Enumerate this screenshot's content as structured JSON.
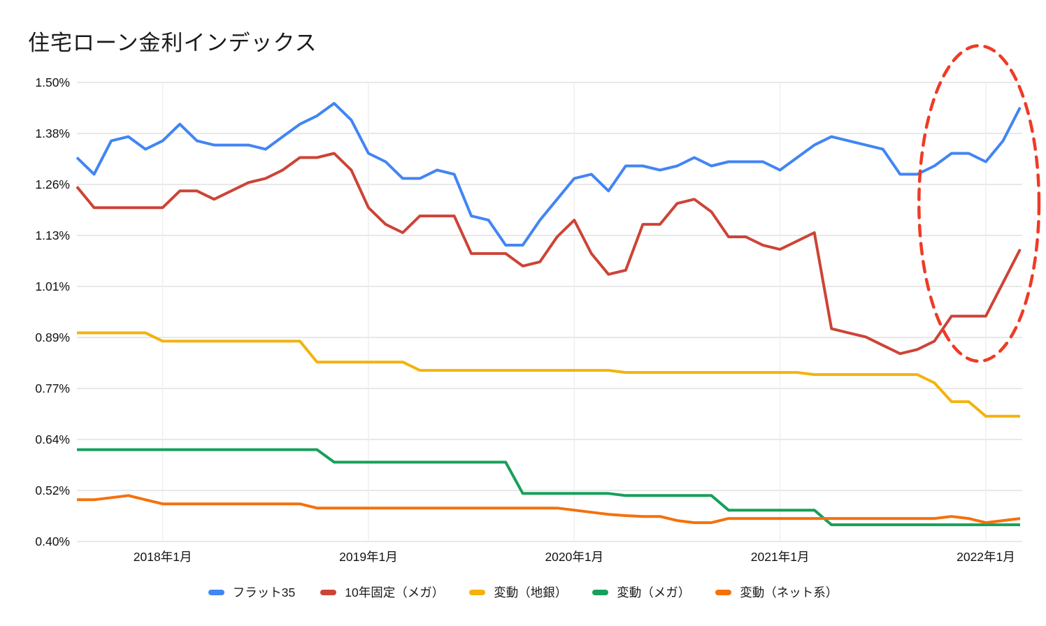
{
  "title": "住宅ローン金利インデックス",
  "chart_data": {
    "type": "line",
    "title": "住宅ローン金利インデックス",
    "grid": true,
    "legend_position": "bottom",
    "x_axis": {
      "n_points": 56,
      "start_month": "2017-08",
      "end_month": "2022-03",
      "tick_labels": [
        "2018年1月",
        "2019年1月",
        "2020年1月",
        "2021年1月",
        "2022年1月"
      ],
      "tick_indices": [
        5,
        17,
        29,
        41,
        53
      ]
    },
    "y_axis": {
      "min": 0.4,
      "max": 1.5,
      "unit": "%",
      "tick_labels": [
        "1.50%",
        "1.38%",
        "1.26%",
        "1.13%",
        "1.01%",
        "0.89%",
        "0.77%",
        "0.64%",
        "0.52%",
        "0.40%"
      ]
    },
    "series": [
      {
        "name": "フラット35",
        "key": "flat-35",
        "color": "#4285F4",
        "values": [
          1.32,
          1.28,
          1.36,
          1.37,
          1.34,
          1.36,
          1.4,
          1.36,
          1.35,
          1.35,
          1.35,
          1.34,
          1.37,
          1.4,
          1.42,
          1.45,
          1.41,
          1.33,
          1.31,
          1.27,
          1.27,
          1.29,
          1.28,
          1.18,
          1.17,
          1.11,
          1.11,
          1.17,
          1.22,
          1.27,
          1.28,
          1.24,
          1.3,
          1.3,
          1.29,
          1.3,
          1.32,
          1.3,
          1.31,
          1.31,
          1.31,
          1.29,
          1.32,
          1.35,
          1.37,
          1.36,
          1.35,
          1.34,
          1.28,
          1.28,
          1.3,
          1.33,
          1.33,
          1.31,
          1.36,
          1.44
        ]
      },
      {
        "name": "10年固定（メガ）",
        "key": "10y-fixed-mega",
        "color": "#CC4437",
        "values": [
          1.25,
          1.2,
          1.2,
          1.2,
          1.2,
          1.2,
          1.24,
          1.24,
          1.22,
          1.24,
          1.26,
          1.27,
          1.29,
          1.32,
          1.32,
          1.33,
          1.29,
          1.2,
          1.16,
          1.14,
          1.18,
          1.18,
          1.18,
          1.09,
          1.09,
          1.09,
          1.06,
          1.07,
          1.13,
          1.17,
          1.09,
          1.04,
          1.05,
          1.16,
          1.16,
          1.21,
          1.22,
          1.19,
          1.13,
          1.13,
          1.11,
          1.1,
          1.12,
          1.14,
          0.91,
          0.9,
          0.89,
          0.87,
          0.85,
          0.86,
          0.88,
          0.94,
          0.94,
          0.94,
          1.02,
          1.1
        ]
      },
      {
        "name": "変動（地銀）",
        "key": "variable-regional-bank",
        "color": "#F3B30E",
        "values": [
          0.9,
          0.9,
          0.9,
          0.9,
          0.9,
          0.88,
          0.88,
          0.88,
          0.88,
          0.88,
          0.88,
          0.88,
          0.88,
          0.88,
          0.83,
          0.83,
          0.83,
          0.83,
          0.83,
          0.83,
          0.81,
          0.81,
          0.81,
          0.81,
          0.81,
          0.81,
          0.81,
          0.81,
          0.81,
          0.81,
          0.81,
          0.81,
          0.805,
          0.805,
          0.805,
          0.805,
          0.805,
          0.805,
          0.805,
          0.805,
          0.805,
          0.805,
          0.805,
          0.8,
          0.8,
          0.8,
          0.8,
          0.8,
          0.8,
          0.8,
          0.78,
          0.735,
          0.735,
          0.7,
          0.7,
          0.7
        ]
      },
      {
        "name": "変動（メガ）",
        "key": "variable-mega",
        "color": "#17A05B",
        "values": [
          0.62,
          0.62,
          0.62,
          0.62,
          0.62,
          0.62,
          0.62,
          0.62,
          0.62,
          0.62,
          0.62,
          0.62,
          0.62,
          0.62,
          0.62,
          0.59,
          0.59,
          0.59,
          0.59,
          0.59,
          0.59,
          0.59,
          0.59,
          0.59,
          0.59,
          0.59,
          0.515,
          0.515,
          0.515,
          0.515,
          0.515,
          0.515,
          0.51,
          0.51,
          0.51,
          0.51,
          0.51,
          0.51,
          0.475,
          0.475,
          0.475,
          0.475,
          0.475,
          0.475,
          0.44,
          0.44,
          0.44,
          0.44,
          0.44,
          0.44,
          0.44,
          0.44,
          0.44,
          0.44,
          0.44,
          0.44
        ]
      },
      {
        "name": "変動（ネット系）",
        "key": "variable-net",
        "color": "#F4710C",
        "values": [
          0.5,
          0.5,
          0.505,
          0.51,
          0.5,
          0.49,
          0.49,
          0.49,
          0.49,
          0.49,
          0.49,
          0.49,
          0.49,
          0.49,
          0.48,
          0.48,
          0.48,
          0.48,
          0.48,
          0.48,
          0.48,
          0.48,
          0.48,
          0.48,
          0.48,
          0.48,
          0.48,
          0.48,
          0.48,
          0.475,
          0.47,
          0.465,
          0.462,
          0.46,
          0.46,
          0.45,
          0.445,
          0.445,
          0.455,
          0.455,
          0.455,
          0.455,
          0.455,
          0.455,
          0.455,
          0.455,
          0.455,
          0.455,
          0.455,
          0.455,
          0.455,
          0.46,
          0.455,
          0.445,
          0.45,
          0.455
        ]
      }
    ],
    "annotation": {
      "type": "dashed-ellipse",
      "color": "#EE3B26",
      "center_index": 52.6,
      "center_value": 1.21,
      "radius_months": 3.5,
      "radius_value": 0.378
    },
    "colors": {
      "background": "#ffffff",
      "h_gridline": "#e0e0e0",
      "v_gridline": "#eeeeee",
      "axis_text": "#111111",
      "title_text": "#1a1a1a"
    }
  }
}
